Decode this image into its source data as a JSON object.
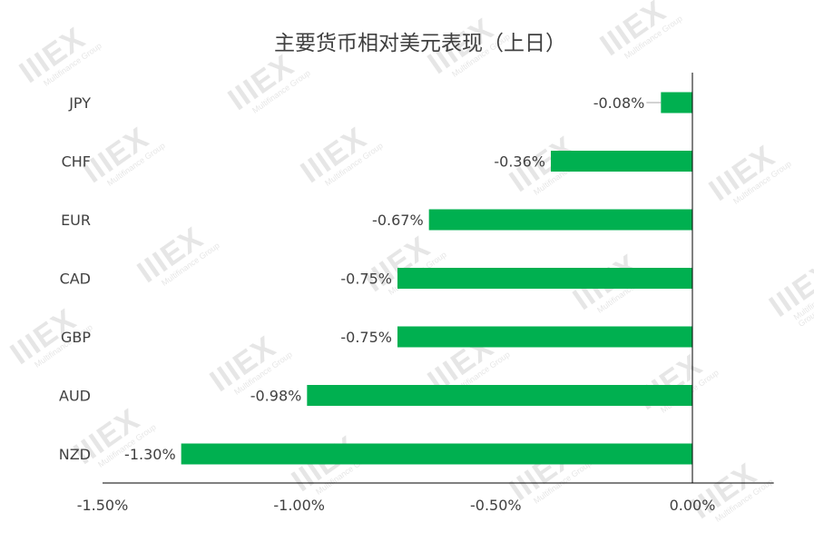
{
  "watermark": {
    "logo_text": "IIIEX",
    "sub_text": "Multifinance Group"
  },
  "chart_data": {
    "type": "bar",
    "orientation": "horizontal",
    "title": "主要货币相对美元表现（上日）",
    "categories": [
      "JPY",
      "CHF",
      "EUR",
      "CAD",
      "GBP",
      "AUD",
      "NZD"
    ],
    "values": [
      -0.08,
      -0.36,
      -0.67,
      -0.75,
      -0.75,
      -0.98,
      -1.3
    ],
    "value_labels": [
      "-0.08%",
      "-0.36%",
      "-0.67%",
      "-0.75%",
      "-0.75%",
      "-0.98%",
      "-1.30%"
    ],
    "x_ticks": [
      -1.5,
      -1.0,
      -0.5,
      0.0
    ],
    "x_tick_labels": [
      "-1.50%",
      "-1.00%",
      "-0.50%",
      "0.00%"
    ],
    "xlim": [
      -1.5,
      0.2
    ],
    "xlabel": "",
    "ylabel": "",
    "grid": false,
    "legend": "none",
    "colors": {
      "bar": "#00b050",
      "axis": "#000000",
      "text": "#404040",
      "title": "#404040"
    }
  }
}
